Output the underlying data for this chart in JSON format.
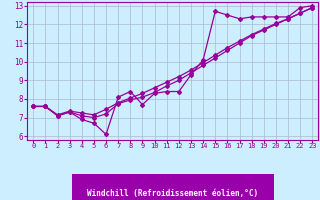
{
  "xlabel": "Windchill (Refroidissement éolien,°C)",
  "bg_color": "#cceeff",
  "line_color": "#990099",
  "grid_color": "#aabbcc",
  "xlim": [
    -0.5,
    23.5
  ],
  "ylim": [
    5.8,
    13.2
  ],
  "xticks": [
    0,
    1,
    2,
    3,
    4,
    5,
    6,
    7,
    8,
    9,
    10,
    11,
    12,
    13,
    14,
    15,
    16,
    17,
    18,
    19,
    20,
    21,
    22,
    23
  ],
  "yticks": [
    6,
    7,
    8,
    9,
    10,
    11,
    12,
    13
  ],
  "line1_x": [
    0,
    1,
    2,
    3,
    4,
    5,
    6,
    7,
    8,
    9,
    10,
    11,
    12,
    13,
    14,
    15,
    16,
    17,
    18,
    19,
    20,
    21,
    22,
    23
  ],
  "line1_y": [
    7.6,
    7.6,
    7.1,
    7.3,
    6.9,
    6.7,
    6.1,
    8.1,
    8.4,
    7.7,
    8.3,
    8.4,
    8.4,
    9.3,
    10.1,
    12.7,
    12.5,
    12.3,
    12.4,
    12.4,
    12.4,
    12.4,
    12.9,
    13.0
  ],
  "line2_x": [
    0,
    1,
    2,
    3,
    4,
    5,
    6,
    7,
    8,
    9,
    10,
    11,
    12,
    13,
    14,
    15,
    16,
    17,
    18,
    19,
    20,
    21,
    22,
    23
  ],
  "line2_y": [
    7.6,
    7.6,
    7.15,
    7.35,
    7.25,
    7.15,
    7.45,
    7.8,
    8.05,
    8.3,
    8.6,
    8.9,
    9.2,
    9.55,
    9.95,
    10.35,
    10.75,
    11.1,
    11.45,
    11.75,
    12.05,
    12.3,
    12.6,
    12.9
  ],
  "line3_x": [
    0,
    1,
    2,
    3,
    4,
    5,
    6,
    7,
    8,
    9,
    10,
    11,
    12,
    13,
    14,
    15,
    16,
    17,
    18,
    19,
    20,
    21,
    22,
    23
  ],
  "line3_y": [
    7.6,
    7.6,
    7.1,
    7.3,
    7.1,
    7.0,
    7.2,
    7.75,
    7.95,
    8.1,
    8.35,
    8.7,
    9.0,
    9.4,
    9.8,
    10.2,
    10.6,
    11.0,
    11.4,
    11.7,
    12.0,
    12.3,
    12.6,
    12.9
  ],
  "xlabel_bg": "#9900aa",
  "xlabel_fg": "#ffffff",
  "xlabel_fontsize": 5.5,
  "tick_fontsize": 5.0
}
